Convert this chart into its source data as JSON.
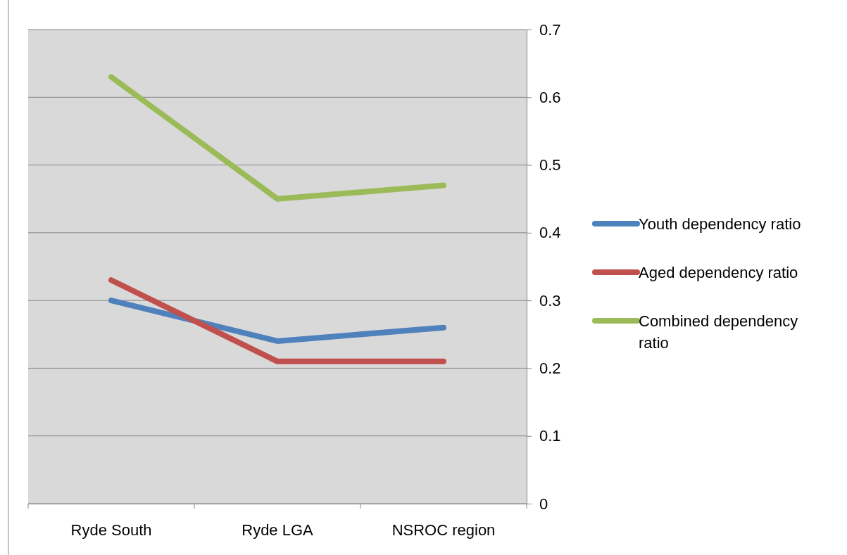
{
  "chart_data": {
    "type": "line",
    "categories": [
      "Ryde South",
      "Ryde LGA",
      "NSROC region"
    ],
    "series": [
      {
        "name": "Youth dependency ratio",
        "color": "#4f81bd",
        "values": [
          0.3,
          0.24,
          0.26
        ]
      },
      {
        "name": "Aged dependency ratio",
        "color": "#c0504d",
        "values": [
          0.33,
          0.21,
          0.21
        ]
      },
      {
        "name": "Combined dependency ratio",
        "color": "#9bbb59",
        "values": [
          0.63,
          0.45,
          0.47
        ]
      }
    ],
    "ylim": [
      0,
      0.7
    ],
    "yticks": [
      0,
      0.1,
      0.2,
      0.3,
      0.4,
      0.5,
      0.6,
      0.7
    ],
    "grid": "y",
    "legend": "right",
    "marker": "none",
    "line_style": "solid"
  }
}
